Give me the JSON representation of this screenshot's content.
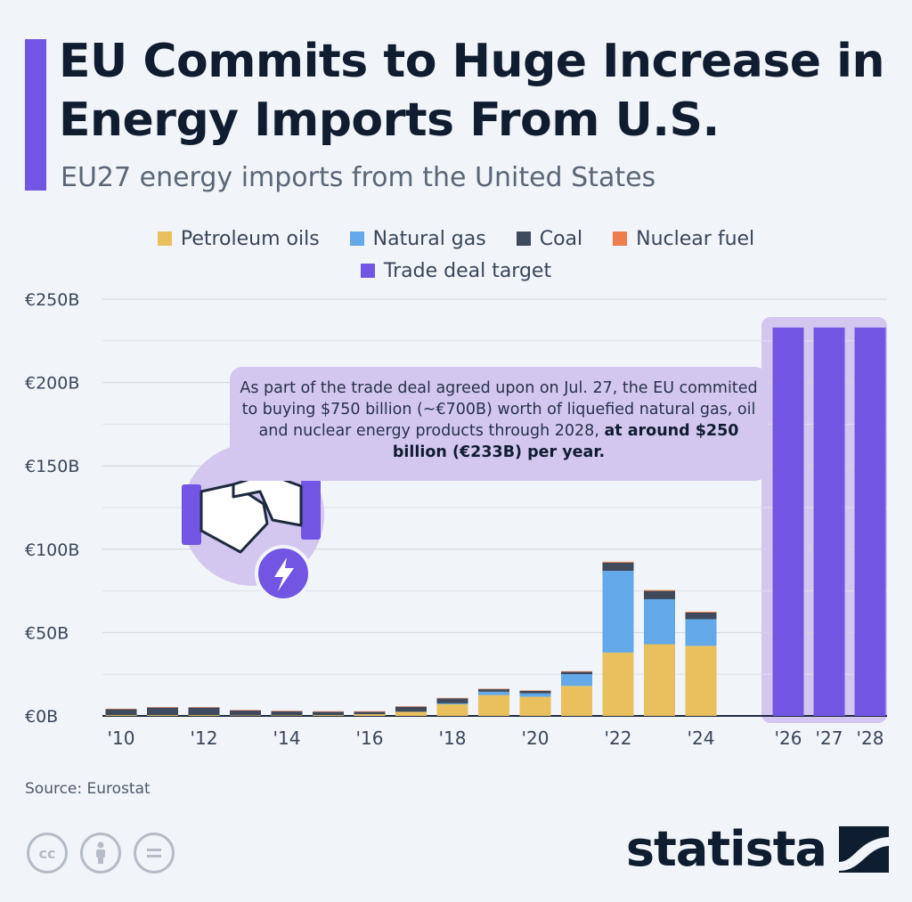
{
  "header": {
    "title": "EU Commits to Huge Increase in Energy Imports From U.S.",
    "subtitle": "EU27 energy imports from the United States"
  },
  "callout": {
    "text_plain": "As part of the trade deal agreed upon on Jul. 27, the EU commited to buying $750 billion (~€700B) worth of liquefied natural gas, oil and nuclear energy products through 2028,",
    "text_bold": "at around $250 billion (€233B) per year."
  },
  "footer": {
    "source": "Source: Eurostat",
    "brand": "statista",
    "license_icons": [
      "cc-icon",
      "person-icon",
      "equals-icon"
    ]
  },
  "colors": {
    "accent": "#7355e3",
    "title": "#101d31",
    "petroleum": "#e9c05d",
    "gas": "#63a9ea",
    "coal": "#3f4a5c",
    "nuclear": "#ee7c4d",
    "target": "#7355e3"
  },
  "chart_data": {
    "type": "bar",
    "stacked": true,
    "categories": [
      "2010",
      "2011",
      "2012",
      "2013",
      "2014",
      "2015",
      "2016",
      "2017",
      "2018",
      "2019",
      "2020",
      "2021",
      "2022",
      "2023",
      "2024",
      "2026",
      "2027",
      "2028"
    ],
    "tick_labels": [
      "'10",
      "",
      "'12",
      "",
      "'14",
      "",
      "'16",
      "",
      "'18",
      "",
      "'20",
      "",
      "'22",
      "",
      "'24",
      "'26",
      "'27",
      "'28"
    ],
    "legend": [
      {
        "name": "Petroleum oils",
        "color": "#e9c05d"
      },
      {
        "name": "Natural gas",
        "color": "#63a9ea"
      },
      {
        "name": "Coal",
        "color": "#3f4a5c"
      },
      {
        "name": "Nuclear fuel",
        "color": "#ee7c4d"
      },
      {
        "name": "Trade deal target",
        "color": "#7355e3"
      }
    ],
    "series": [
      {
        "name": "Petroleum oils",
        "color": "#e9c05d",
        "values": [
          0.5,
          0.5,
          0.5,
          0.3,
          0.3,
          0.5,
          1,
          2.5,
          7,
          12.5,
          11.5,
          18,
          38,
          43,
          42,
          0,
          0,
          0
        ]
      },
      {
        "name": "Natural gas",
        "color": "#63a9ea",
        "values": [
          0,
          0,
          0,
          0,
          0,
          0,
          0,
          0,
          0.5,
          2,
          2,
          7,
          49,
          27,
          16,
          0,
          0,
          0
        ]
      },
      {
        "name": "Coal",
        "color": "#3f4a5c",
        "values": [
          3.5,
          4.5,
          4.5,
          3,
          2.5,
          2,
          1.5,
          3,
          3,
          1.5,
          1.5,
          1.5,
          5,
          5,
          4,
          0,
          0,
          0
        ]
      },
      {
        "name": "Nuclear fuel",
        "color": "#ee7c4d",
        "values": [
          0.3,
          0.3,
          0.3,
          0.3,
          0.3,
          0.3,
          0.3,
          0.3,
          0.3,
          0.3,
          0.3,
          0.3,
          0.5,
          0.5,
          0.5,
          0,
          0,
          0
        ]
      },
      {
        "name": "Trade deal target",
        "color": "#7355e3",
        "values": [
          0,
          0,
          0,
          0,
          0,
          0,
          0,
          0,
          0,
          0,
          0,
          0,
          0,
          0,
          0,
          233,
          233,
          233
        ]
      }
    ],
    "y_ticks": [
      0,
      50,
      100,
      150,
      200,
      250
    ],
    "y_tick_labels": [
      "€0B",
      "€50B",
      "€100B",
      "€150B",
      "€200B",
      "€250B"
    ],
    "ylim": [
      0,
      250
    ],
    "grid": true
  }
}
